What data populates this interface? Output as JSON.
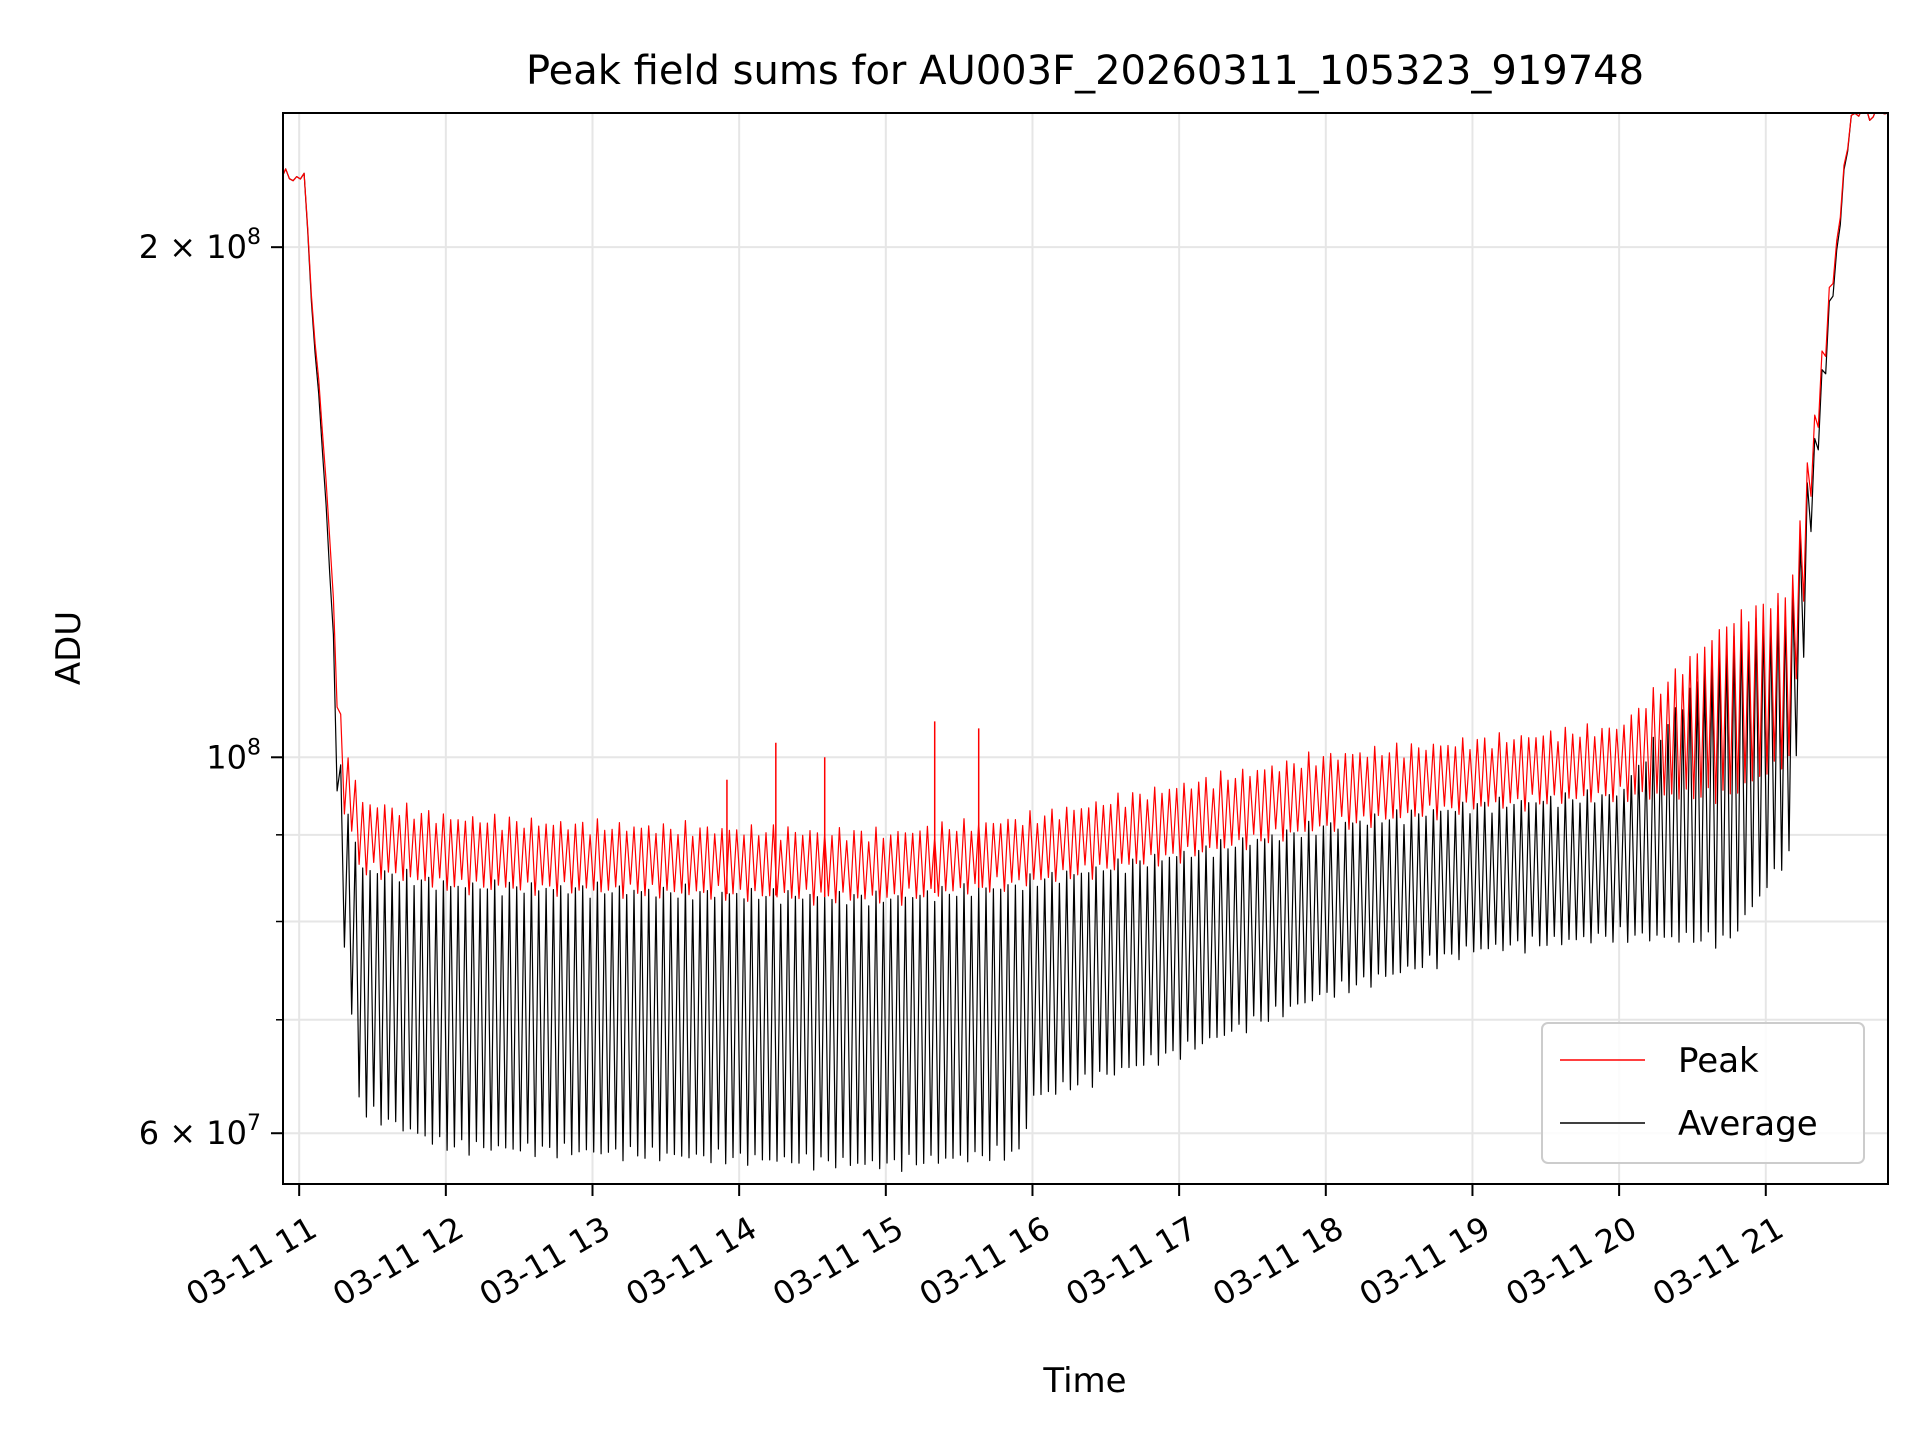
{
  "chart_data": {
    "type": "line",
    "title": "Peak field sums for AU003F_20260311_105323_919748",
    "xlabel": "Time",
    "ylabel": "ADU",
    "x_axis": {
      "kind": "datetime",
      "range": [
        "2026-03-11T10:53:23",
        "2026-03-11T21:50:00"
      ],
      "ticks": [
        {
          "value": "2026-03-11T11:00",
          "label": "03-11 11"
        },
        {
          "value": "2026-03-11T12:00",
          "label": "03-11 12"
        },
        {
          "value": "2026-03-11T13:00",
          "label": "03-11 13"
        },
        {
          "value": "2026-03-11T14:00",
          "label": "03-11 14"
        },
        {
          "value": "2026-03-11T15:00",
          "label": "03-11 15"
        },
        {
          "value": "2026-03-11T16:00",
          "label": "03-11 16"
        },
        {
          "value": "2026-03-11T17:00",
          "label": "03-11 17"
        },
        {
          "value": "2026-03-11T18:00",
          "label": "03-11 18"
        },
        {
          "value": "2026-03-11T19:00",
          "label": "03-11 19"
        },
        {
          "value": "2026-03-11T20:00",
          "label": "03-11 20"
        },
        {
          "value": "2026-03-11T21:00",
          "label": "03-11 21"
        }
      ]
    },
    "y_axis": {
      "scale": "log",
      "range": [
        56000000,
        240000000
      ],
      "ticks": [
        {
          "value": 60000000,
          "label": "6 × 10⁷",
          "mantissa": "6",
          "exp": "7"
        },
        {
          "value": 100000000,
          "label": "10⁸",
          "mantissa": "",
          "exp": "8"
        },
        {
          "value": 200000000,
          "label": "2 × 10⁸",
          "mantissa": "2",
          "exp": "8"
        }
      ],
      "minor_ticks": [
        70000000,
        80000000,
        90000000
      ]
    },
    "grid": true,
    "legend": {
      "placement": "lower right"
    },
    "series": [
      {
        "name": "Peak",
        "color": "#ff0000",
        "envelope": [
          {
            "x": "2026-03-11T10:53",
            "upper": 220000000,
            "lower": 220000000
          },
          {
            "x": "2026-03-11T11:02",
            "upper": 220000000,
            "lower": 220000000
          },
          {
            "x": "2026-03-11T11:06",
            "upper": 180000000,
            "lower": 180000000
          },
          {
            "x": "2026-03-11T11:12",
            "upper": 140000000,
            "lower": 140000000
          },
          {
            "x": "2026-03-11T11:17",
            "upper": 105000000,
            "lower": 95000000
          },
          {
            "x": "2026-03-11T11:25",
            "upper": 94000000,
            "lower": 86000000
          },
          {
            "x": "2026-03-11T12:00",
            "upper": 92000000,
            "lower": 84000000
          },
          {
            "x": "2026-03-11T13:00",
            "upper": 91000000,
            "lower": 83500000
          },
          {
            "x": "2026-03-11T14:00",
            "upper": 90500000,
            "lower": 83000000
          },
          {
            "x": "2026-03-11T15:00",
            "upper": 90000000,
            "lower": 82500000
          },
          {
            "x": "2026-03-11T16:00",
            "upper": 92000000,
            "lower": 84500000
          },
          {
            "x": "2026-03-11T17:00",
            "upper": 96000000,
            "lower": 87500000
          },
          {
            "x": "2026-03-11T18:00",
            "upper": 100000000,
            "lower": 91000000
          },
          {
            "x": "2026-03-11T19:00",
            "upper": 102000000,
            "lower": 93500000
          },
          {
            "x": "2026-03-11T20:00",
            "upper": 104000000,
            "lower": 95000000
          },
          {
            "x": "2026-03-11T20:45",
            "upper": 120000000,
            "lower": 95000000
          },
          {
            "x": "2026-03-11T21:10",
            "upper": 125000000,
            "lower": 100000000
          },
          {
            "x": "2026-03-11T21:20",
            "upper": 160000000,
            "lower": 150000000
          },
          {
            "x": "2026-03-11T21:35",
            "upper": 240000000,
            "lower": 240000000
          },
          {
            "x": "2026-03-11T21:50",
            "upper": 240000000,
            "lower": 240000000
          }
        ],
        "spikes": [
          {
            "x": "2026-03-11T13:55",
            "value": 97000000
          },
          {
            "x": "2026-03-11T14:15",
            "value": 102000000
          },
          {
            "x": "2026-03-11T14:35",
            "value": 100000000
          },
          {
            "x": "2026-03-11T15:20",
            "value": 105000000
          },
          {
            "x": "2026-03-11T15:38",
            "value": 104000000
          }
        ]
      },
      {
        "name": "Average",
        "color": "#000000",
        "envelope": [
          {
            "x": "2026-03-11T10:53",
            "upper": 220000000,
            "lower": 220000000
          },
          {
            "x": "2026-03-11T11:02",
            "upper": 220000000,
            "lower": 220000000
          },
          {
            "x": "2026-03-11T11:06",
            "upper": 178000000,
            "lower": 178000000
          },
          {
            "x": "2026-03-11T11:12",
            "upper": 135000000,
            "lower": 135000000
          },
          {
            "x": "2026-03-11T11:17",
            "upper": 98000000,
            "lower": 82000000
          },
          {
            "x": "2026-03-11T11:25",
            "upper": 86000000,
            "lower": 62000000
          },
          {
            "x": "2026-03-11T12:00",
            "upper": 84000000,
            "lower": 59000000
          },
          {
            "x": "2026-03-11T13:00",
            "upper": 83500000,
            "lower": 58500000
          },
          {
            "x": "2026-03-11T14:00",
            "upper": 83000000,
            "lower": 58000000
          },
          {
            "x": "2026-03-11T15:00",
            "upper": 82500000,
            "lower": 57500000
          },
          {
            "x": "2026-03-11T15:55",
            "upper": 84000000,
            "lower": 58500000
          },
          {
            "x": "2026-03-11T16:00",
            "upper": 84500000,
            "lower": 63000000
          },
          {
            "x": "2026-03-11T17:00",
            "upper": 87500000,
            "lower": 67000000
          },
          {
            "x": "2026-03-11T18:00",
            "upper": 91000000,
            "lower": 72500000
          },
          {
            "x": "2026-03-11T19:00",
            "upper": 93500000,
            "lower": 77000000
          },
          {
            "x": "2026-03-11T20:00",
            "upper": 95000000,
            "lower": 78500000
          },
          {
            "x": "2026-03-11T20:45",
            "upper": 118000000,
            "lower": 78000000
          },
          {
            "x": "2026-03-11T21:10",
            "upper": 123000000,
            "lower": 88000000
          },
          {
            "x": "2026-03-11T21:20",
            "upper": 155000000,
            "lower": 145000000
          },
          {
            "x": "2026-03-11T21:35",
            "upper": 240000000,
            "lower": 240000000
          },
          {
            "x": "2026-03-11T21:50",
            "upper": 240000000,
            "lower": 240000000
          }
        ]
      }
    ]
  }
}
